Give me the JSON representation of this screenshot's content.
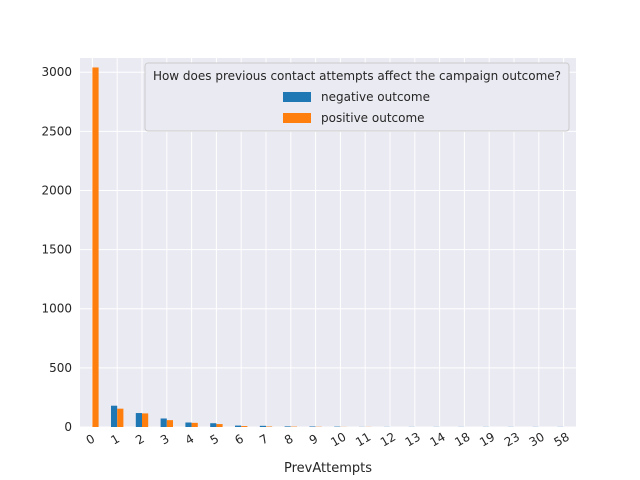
{
  "chart_data": {
    "type": "bar",
    "title": "",
    "xlabel": "PrevAttempts",
    "ylabel": "",
    "ylim": [
      0,
      3120
    ],
    "yticks": [
      0,
      500,
      1000,
      1500,
      2000,
      2500,
      3000
    ],
    "grid": true,
    "legend_placement": "top-right",
    "legend_title": "How does previous contact attempts affect the campaign outcome?",
    "categories": [
      "0",
      "1",
      "2",
      "3",
      "4",
      "5",
      "6",
      "7",
      "8",
      "9",
      "10",
      "11",
      "12",
      "13",
      "14",
      "18",
      "19",
      "23",
      "30",
      "58"
    ],
    "series": [
      {
        "name": "negative outcome",
        "color": "#1f77b4",
        "values": [
          0,
          180,
          118,
          72,
          38,
          32,
          12,
          10,
          5,
          4,
          3,
          1,
          1,
          1,
          1,
          1,
          1,
          1,
          1,
          1
        ]
      },
      {
        "name": "positive outcome",
        "color": "#ff7f0e",
        "values": [
          3040,
          155,
          115,
          58,
          35,
          25,
          8,
          4,
          3,
          2,
          1,
          1,
          0,
          0,
          0,
          0,
          0,
          0,
          0,
          0
        ]
      }
    ],
    "style": {
      "plot_bg": "#eaeaf2",
      "grid_color": "#ffffff",
      "legend_bg": "#eaeaf2",
      "legend_border": "#cccccc"
    }
  }
}
